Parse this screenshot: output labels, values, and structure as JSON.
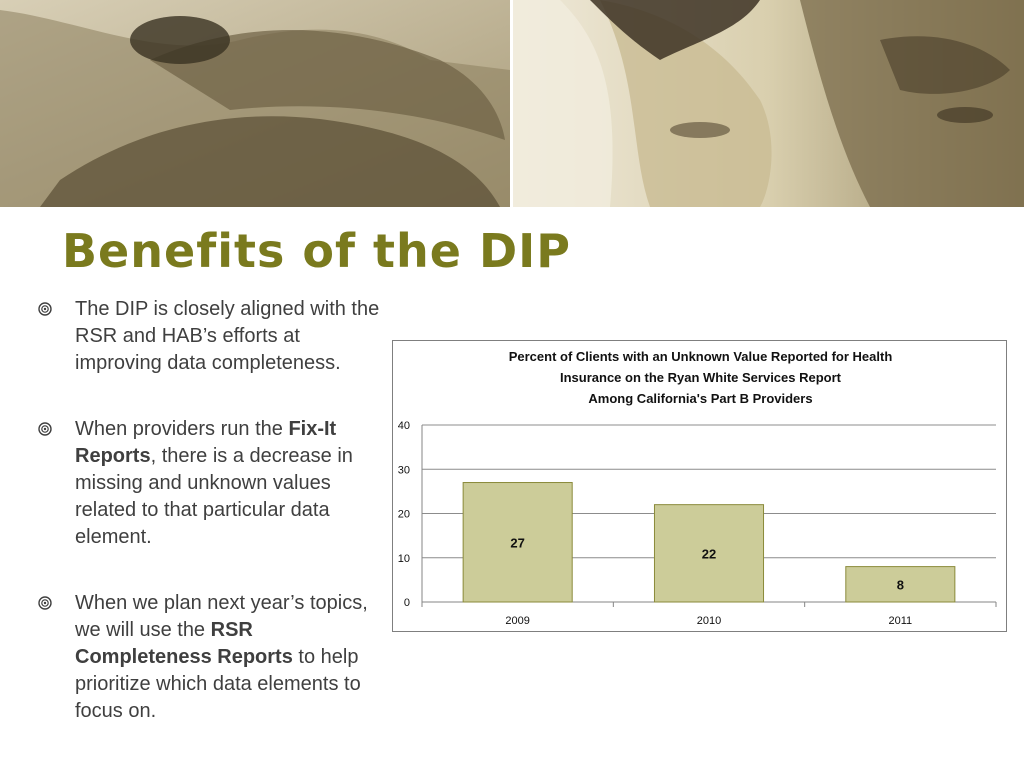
{
  "slide": {
    "title": "Benefits of the DIP",
    "bullets": [
      {
        "parts": [
          {
            "text": "The DIP is closely aligned with the RSR and HAB’s efforts at improving data completeness.",
            "bold": false
          }
        ]
      },
      {
        "parts": [
          {
            "text": "When providers run the ",
            "bold": false
          },
          {
            "text": "Fix-It Reports",
            "bold": true
          },
          {
            "text": ", there is a decrease in missing and unknown values related to that particular data element.",
            "bold": false
          }
        ]
      },
      {
        "parts": [
          {
            "text": "When we plan next year’s topics, we will use the ",
            "bold": false
          },
          {
            "text": "RSR Completeness Reports",
            "bold": true
          },
          {
            "text": " to help prioritize which data elements to focus on.",
            "bold": false
          }
        ]
      }
    ]
  },
  "colors": {
    "title": "#7a7a1e",
    "bar_fill": "#cccc99",
    "bar_stroke": "#8a8a3a",
    "text": "#3f3f3f"
  },
  "banner": {
    "left_image": "hands-on-keyboard-photo",
    "right_image": "women-faces-photo"
  },
  "chart_data": {
    "type": "bar",
    "title_lines": [
      "Percent of Clients with an Unknown Value Reported for Health",
      "Insurance on the Ryan White Services Report",
      "Among California's Part B Providers"
    ],
    "categories": [
      "2009",
      "2010",
      "2011"
    ],
    "values": [
      27,
      22,
      8
    ],
    "data_labels": [
      "27",
      "22",
      "8"
    ],
    "y_ticks": [
      "0",
      "10",
      "20",
      "30",
      "40"
    ],
    "ylim": [
      0,
      40
    ],
    "grid": true,
    "legend": "none",
    "xlabel": "",
    "ylabel": ""
  }
}
